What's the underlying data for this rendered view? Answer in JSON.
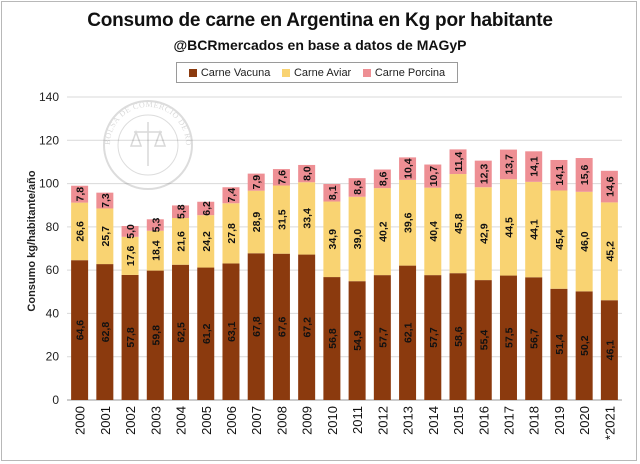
{
  "title": "Consumo de carne en Argentina en Kg por habitante",
  "subtitle": "@BCRmercados en base a datos de MAGyP",
  "watermark": "BOLSA DE COMERCIO DE ROSARIO",
  "colors": {
    "vacuna": "#8B3A0E",
    "aviar": "#F9D372",
    "porcina": "#EE8F94",
    "grid": "#d9d9d9"
  },
  "chart_data": {
    "type": "bar",
    "stacked": true,
    "title": "Consumo de carne en Argentina en Kg por habitante",
    "subtitle": "@BCRmercados en base a datos de MAGyP",
    "xlabel": "",
    "ylabel": "Consumo kg/habitante/año",
    "ylim": [
      0,
      140
    ],
    "yticks": [
      0,
      20,
      40,
      60,
      80,
      100,
      120,
      140
    ],
    "grid": true,
    "legend_position": "top",
    "categories": [
      "2000",
      "2001",
      "2002",
      "2003",
      "2004",
      "2005",
      "2006",
      "2007",
      "2008",
      "2009",
      "2010",
      "2011",
      "2012",
      "2013",
      "2014",
      "2015",
      "2016",
      "2017",
      "2018",
      "2019",
      "2020",
      "*2021"
    ],
    "series": [
      {
        "name": "Carne Vacuna",
        "key": "vacuna",
        "values": [
          64.6,
          62.8,
          57.8,
          59.8,
          62.5,
          61.2,
          63.1,
          67.8,
          67.6,
          67.2,
          56.8,
          54.9,
          57.7,
          62.1,
          57.7,
          58.6,
          55.4,
          57.5,
          56.7,
          51.4,
          50.2,
          46.1
        ]
      },
      {
        "name": "Carne Aviar",
        "key": "aviar",
        "values": [
          26.6,
          25.7,
          17.6,
          18.4,
          21.6,
          24.2,
          27.8,
          28.9,
          31.5,
          33.4,
          34.9,
          39.0,
          40.2,
          39.6,
          40.4,
          45.8,
          42.9,
          44.5,
          44.1,
          45.4,
          46.0,
          45.2
        ]
      },
      {
        "name": "Carne Porcina",
        "key": "porcina",
        "values": [
          7.8,
          7.3,
          5.0,
          5.3,
          5.8,
          6.2,
          7.4,
          7.9,
          7.6,
          8.0,
          8.1,
          8.6,
          8.6,
          10.4,
          10.7,
          11.4,
          12.3,
          13.7,
          14.1,
          14.1,
          15.6,
          14.6
        ]
      }
    ]
  }
}
